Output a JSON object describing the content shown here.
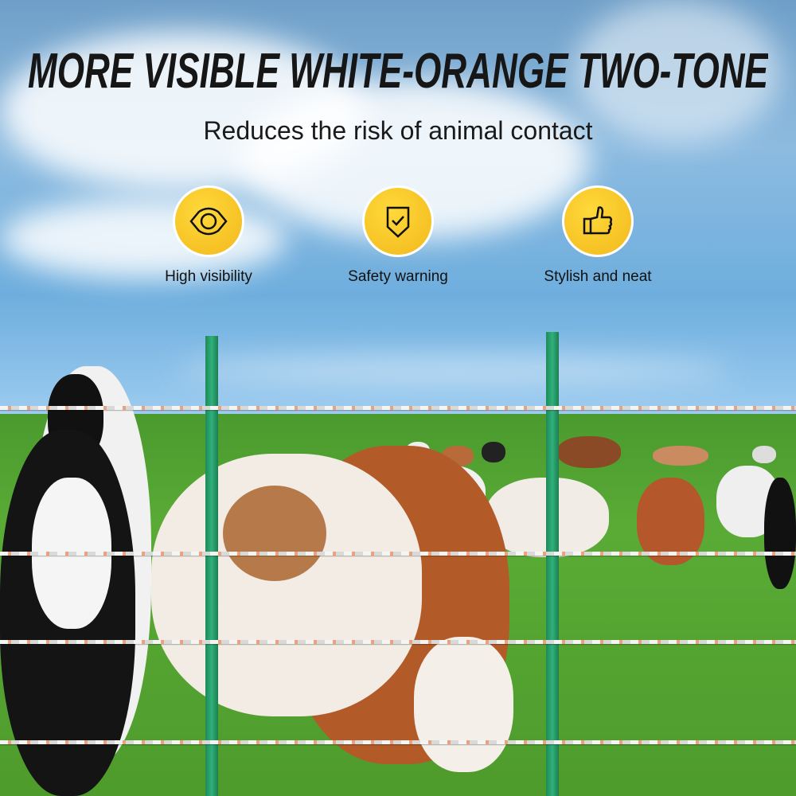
{
  "headline": "MORE VISIBLE WHITE-ORANGE TWO-TONE",
  "subheadline": "Reduces the risk of animal contact",
  "features": [
    {
      "icon": "eye-icon",
      "label": "High visibility"
    },
    {
      "icon": "shield-check-icon",
      "label": "Safety warning"
    },
    {
      "icon": "thumbs-up-icon",
      "label": "Stylish and neat"
    }
  ],
  "colors": {
    "badge": "#f5c021",
    "post": "#23a06a",
    "wire_accent": "#e9a27a"
  }
}
